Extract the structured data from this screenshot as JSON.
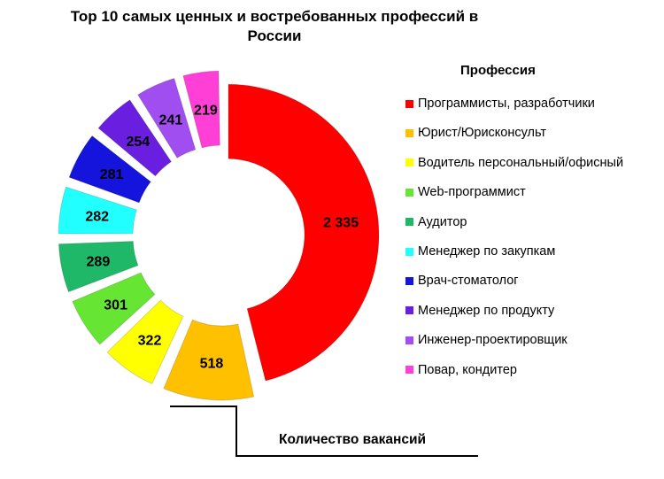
{
  "chart_data": {
    "type": "pie",
    "variant": "exploded doughnut",
    "title": "Top 10 самых ценных и востребованных профессий в России",
    "legend_title": "Профессия",
    "legend_position": "right",
    "series_label": "Количество вакансий",
    "categories": [
      "Программисты, разработчики",
      "Юрист/Юрисконсульт",
      "Водитель персональный/офисный",
      "Web-программист",
      "Аудитор",
      "Менеджер по закупкам",
      "Врач-стоматолог",
      "Менеджер по продукту",
      "Инженер-проектировщик",
      "Повар, кондитер"
    ],
    "values": [
      2335,
      518,
      322,
      301,
      289,
      282,
      281,
      254,
      241,
      219
    ],
    "data_labels": [
      "2 335",
      "518",
      "322",
      "301",
      "289",
      "282",
      "281",
      "254",
      "241",
      "219"
    ],
    "colors": [
      "#ff0000",
      "#ffc000",
      "#ffff00",
      "#66e632",
      "#1fb868",
      "#22ffff",
      "#1414dc",
      "#6a1ee0",
      "#a04ef0",
      "#ff3fd6"
    ]
  }
}
